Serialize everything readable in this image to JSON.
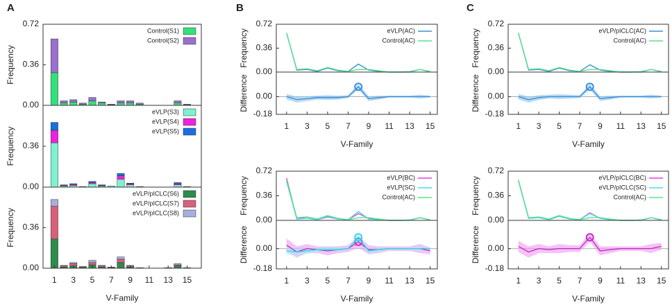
{
  "panel_labels": [
    "A",
    "B",
    "C"
  ],
  "chart_data": [
    {
      "type": "bar",
      "stacked": true,
      "ylabel": "Frequency",
      "x": [
        1,
        2,
        3,
        4,
        5,
        6,
        7,
        8,
        9,
        10,
        11,
        12,
        13,
        14,
        15
      ],
      "xlim": [
        -0.2,
        16.5
      ],
      "ylim": [
        0,
        0.72
      ],
      "yticks": [
        {
          "value": 0,
          "label": "0.00"
        },
        0.36,
        0.72
      ],
      "legend": "upper right",
      "series": [
        {
          "name": "Control(S1)",
          "color": "#33e07a",
          "values": [
            0.29,
            0.02,
            0.03,
            0.01,
            0.04,
            0.02,
            0.005,
            0.02,
            0.02,
            0.01,
            0,
            0,
            0,
            0.02,
            0.005
          ]
        },
        {
          "name": "Control(S2)",
          "color": "#9b6fd0",
          "values": [
            0.3,
            0.02,
            0.02,
            0.01,
            0.03,
            0.01,
            0.005,
            0.02,
            0.02,
            0.01,
            0,
            0,
            0,
            0.02,
            0.005
          ]
        }
      ]
    },
    {
      "type": "bar",
      "stacked": true,
      "ylabel": "Frequency",
      "x": [
        1,
        2,
        3,
        4,
        5,
        6,
        7,
        8,
        9,
        10,
        11,
        12,
        13,
        14,
        15
      ],
      "xlim": [
        -0.2,
        16.5
      ],
      "ylim": [
        0,
        0.72
      ],
      "yticks": [
        {
          "value": 0,
          "label": "0.00"
        },
        0.36
      ],
      "legend": "upper right",
      "series": [
        {
          "name": "eVLP(S3)",
          "color": "#7ff0d0",
          "values": [
            0.39,
            0.01,
            0.015,
            0.005,
            0.03,
            0.01,
            0.01,
            0.07,
            0.02,
            0.005,
            0,
            0,
            0,
            0.02,
            0.005
          ]
        },
        {
          "name": "eVLP(S4)",
          "color": "#ee22dd",
          "values": [
            0.11,
            0.005,
            0.01,
            0,
            0.01,
            0.005,
            0,
            0.03,
            0.01,
            0,
            0,
            0,
            0,
            0.01,
            0
          ]
        },
        {
          "name": "eVLP(S5)",
          "color": "#1a6fe0",
          "values": [
            0.07,
            0.005,
            0.005,
            0,
            0.01,
            0.005,
            0,
            0.02,
            0.005,
            0,
            0,
            0,
            0,
            0.01,
            0
          ]
        }
      ]
    },
    {
      "type": "bar",
      "stacked": true,
      "ylabel": "Frequency",
      "xlabel": "V-Family",
      "x": [
        1,
        2,
        3,
        4,
        5,
        6,
        7,
        8,
        9,
        10,
        11,
        12,
        13,
        14,
        15
      ],
      "xlim": [
        -0.2,
        16.5
      ],
      "xticks": [
        1,
        3,
        5,
        7,
        9,
        11,
        13,
        15
      ],
      "ylim": [
        0,
        0.72
      ],
      "yticks": [
        {
          "value": 0,
          "label": "0.00"
        },
        0.36
      ],
      "legend": "upper right",
      "series": [
        {
          "name": "eVLP/pICLC(S6)",
          "color": "#2e8b4a",
          "values": [
            0.26,
            0.01,
            0.02,
            0.01,
            0.03,
            0.01,
            0.005,
            0.05,
            0.01,
            0.005,
            0,
            0,
            0.005,
            0.02,
            0.005
          ]
        },
        {
          "name": "eVLP/pICLC(S7)",
          "color": "#d9607a",
          "values": [
            0.29,
            0.01,
            0.02,
            0.005,
            0.02,
            0.01,
            0.005,
            0.03,
            0.01,
            0,
            0,
            0,
            0,
            0.01,
            0
          ]
        },
        {
          "name": "eVLP/pICLC(S8)",
          "color": "#a7aee0",
          "values": [
            0.06,
            0.005,
            0.01,
            0,
            0.02,
            0.005,
            0,
            0.02,
            0.005,
            0,
            0,
            0,
            0,
            0.01,
            0
          ]
        }
      ]
    },
    {
      "type": "line",
      "ylabel": "Frequency",
      "x": [
        1,
        2,
        3,
        4,
        5,
        6,
        7,
        8,
        9,
        10,
        11,
        12,
        13,
        14,
        15
      ],
      "xlim": [
        0,
        15.7
      ],
      "ylim": [
        0,
        0.72
      ],
      "yticks": [
        {
          "value": 0,
          "label": "0.00"
        },
        0.36,
        0.72
      ],
      "legend": "upper right",
      "series": [
        {
          "name": "eVLP(AC)",
          "color": "#3a8fd8",
          "values": [
            0.59,
            0.03,
            0.04,
            0.01,
            0.06,
            0.02,
            0.01,
            0.12,
            0.03,
            0.01,
            0,
            0,
            0.005,
            0.04,
            0.005
          ]
        },
        {
          "name": "Control(AC)",
          "color": "#58e08a",
          "values": [
            0.59,
            0.04,
            0.05,
            0.02,
            0.07,
            0.03,
            0.01,
            0.04,
            0.04,
            0.02,
            0,
            0,
            0,
            0.04,
            0.01
          ]
        }
      ]
    },
    {
      "type": "band",
      "ylabel": "Difference",
      "xlabel": "V-Family",
      "x": [
        1,
        2,
        3,
        4,
        5,
        6,
        7,
        8,
        9,
        10,
        11,
        12,
        13,
        14,
        15
      ],
      "xlim": [
        0,
        15.7
      ],
      "xticks": [
        1,
        3,
        5,
        7,
        9,
        11,
        13,
        15
      ],
      "ylim": [
        -0.18,
        0.25
      ],
      "yticks": [
        -0.18,
        {
          "value": 0,
          "label": "0.00"
        }
      ],
      "zero_line": true,
      "highlight_x": 8,
      "series": [
        {
          "color": "#3a8fd8",
          "band_color": "#8ec4f0",
          "values": [
            0,
            -0.03,
            -0.02,
            -0.01,
            -0.01,
            -0.01,
            0,
            0.1,
            -0.02,
            -0.01,
            0,
            0,
            0,
            0,
            0
          ],
          "errors": [
            0.03,
            0.03,
            0.025,
            0.02,
            0.025,
            0.02,
            0.015,
            0.03,
            0.025,
            0.02,
            0.01,
            0.01,
            0.01,
            0.02,
            0.01
          ]
        }
      ]
    },
    {
      "type": "line",
      "ylabel": "Frequency",
      "x": [
        1,
        2,
        3,
        4,
        5,
        6,
        7,
        8,
        9,
        10,
        11,
        12,
        13,
        14,
        15
      ],
      "xlim": [
        0,
        15.7
      ],
      "ylim": [
        0,
        0.72
      ],
      "yticks": [
        {
          "value": 0,
          "label": "0.00"
        },
        0.36,
        0.72
      ],
      "legend": "upper right",
      "series": [
        {
          "name": "eVLP(BC)",
          "color": "#e040e0",
          "values": [
            0.62,
            0.02,
            0.05,
            0.01,
            0.05,
            0.02,
            0.01,
            0.1,
            0.03,
            0.01,
            0,
            0,
            0.005,
            0.04,
            0.005
          ]
        },
        {
          "name": "eVLP(SC)",
          "color": "#40e0e8",
          "values": [
            0.57,
            0.02,
            0.03,
            0.01,
            0.06,
            0.02,
            0.01,
            0.13,
            0.02,
            0.01,
            0,
            0,
            0.005,
            0.04,
            0.005
          ]
        },
        {
          "name": "Control(AC)",
          "color": "#58e08a",
          "values": [
            0.59,
            0.04,
            0.05,
            0.02,
            0.07,
            0.03,
            0.01,
            0.04,
            0.04,
            0.02,
            0,
            0,
            0,
            0.04,
            0.01
          ]
        }
      ]
    },
    {
      "type": "band",
      "ylabel": "Difference",
      "xlabel": "V-Family",
      "x": [
        1,
        2,
        3,
        4,
        5,
        6,
        7,
        8,
        9,
        10,
        11,
        12,
        13,
        14,
        15
      ],
      "xlim": [
        0,
        15.7
      ],
      "xticks": [
        1,
        3,
        5,
        7,
        9,
        11,
        13,
        15
      ],
      "ylim": [
        -0.18,
        0.25
      ],
      "yticks": [
        -0.18,
        {
          "value": 0,
          "label": "0.00"
        }
      ],
      "zero_line": true,
      "highlight_x": 8,
      "series": [
        {
          "color": "#c030c8",
          "band_color": "#f09af0",
          "values": [
            0.03,
            -0.03,
            0,
            -0.01,
            -0.02,
            -0.01,
            0,
            0.06,
            -0.01,
            -0.01,
            0,
            0,
            0,
            0,
            -0.02
          ],
          "errors": [
            0.06,
            0.05,
            0.04,
            0.03,
            0.04,
            0.03,
            0.03,
            0.05,
            0.04,
            0.03,
            0.02,
            0.02,
            0.02,
            0.04,
            0.03
          ]
        },
        {
          "color": "#30d8e8",
          "band_color": "#a0eef4",
          "values": [
            -0.02,
            -0.03,
            -0.02,
            -0.01,
            -0.01,
            -0.01,
            0,
            0.1,
            -0.02,
            -0.01,
            0,
            0,
            0,
            0,
            0
          ],
          "errors": [
            0.03,
            0.03,
            0.025,
            0.02,
            0.025,
            0.02,
            0.015,
            0.03,
            0.025,
            0.02,
            0.01,
            0.01,
            0.01,
            0.02,
            0.01
          ]
        }
      ]
    },
    {
      "type": "line",
      "ylabel": "Frequency",
      "x": [
        1,
        2,
        3,
        4,
        5,
        6,
        7,
        8,
        9,
        10,
        11,
        12,
        13,
        14,
        15
      ],
      "xlim": [
        0,
        15.7
      ],
      "ylim": [
        0,
        0.72
      ],
      "yticks": [
        {
          "value": 0,
          "label": "0.00"
        },
        0.36,
        0.72
      ],
      "legend": "upper right",
      "series": [
        {
          "name": "eVLP/pICLC(AC)",
          "color": "#3a8fd8",
          "values": [
            0.59,
            0.03,
            0.04,
            0.01,
            0.06,
            0.02,
            0.01,
            0.11,
            0.03,
            0.01,
            0,
            0,
            0.005,
            0.04,
            0.005
          ]
        },
        {
          "name": "Control(AC)",
          "color": "#58e08a",
          "values": [
            0.59,
            0.04,
            0.05,
            0.02,
            0.07,
            0.03,
            0.01,
            0.04,
            0.04,
            0.02,
            0,
            0,
            0,
            0.04,
            0.01
          ]
        }
      ]
    },
    {
      "type": "band",
      "ylabel": "Difference",
      "xlabel": "V-Family",
      "x": [
        1,
        2,
        3,
        4,
        5,
        6,
        7,
        8,
        9,
        10,
        11,
        12,
        13,
        14,
        15
      ],
      "xlim": [
        0,
        15.7
      ],
      "xticks": [
        1,
        3,
        5,
        7,
        9,
        11,
        13,
        15
      ],
      "ylim": [
        -0.18,
        0.25
      ],
      "yticks": [
        -0.18,
        {
          "value": 0,
          "label": "0.00"
        }
      ],
      "zero_line": true,
      "highlight_x": 8,
      "series": [
        {
          "color": "#3a8fd8",
          "band_color": "#8ec4f0",
          "values": [
            0,
            -0.03,
            -0.01,
            0,
            0,
            0,
            0,
            0.1,
            -0.02,
            -0.01,
            0,
            0,
            0,
            0,
            0
          ],
          "errors": [
            0.03,
            0.03,
            0.025,
            0.02,
            0.025,
            0.02,
            0.015,
            0.03,
            0.025,
            0.02,
            0.01,
            0.01,
            0.01,
            0.02,
            0.01
          ]
        }
      ]
    },
    {
      "type": "line",
      "ylabel": "Frequency",
      "x": [
        1,
        2,
        3,
        4,
        5,
        6,
        7,
        8,
        9,
        10,
        11,
        12,
        13,
        14,
        15
      ],
      "xlim": [
        0,
        15.7
      ],
      "ylim": [
        0,
        0.72
      ],
      "yticks": [
        {
          "value": 0,
          "label": "0.00"
        },
        0.36,
        0.72
      ],
      "legend": "upper right",
      "series": [
        {
          "name": "eVLP/pICLC(BC)",
          "color": "#e040e0",
          "values": [
            0.59,
            0.03,
            0.04,
            0.01,
            0.06,
            0.02,
            0.01,
            0.11,
            0.03,
            0.01,
            0,
            0,
            0.005,
            0.04,
            0.005
          ]
        },
        {
          "name": "eVLP/pICLC(SC)",
          "color": "#40e0e8",
          "values": [
            0.58,
            0.03,
            0.04,
            0.01,
            0.06,
            0.02,
            0.01,
            0.1,
            0.03,
            0.01,
            0,
            0,
            0.005,
            0.04,
            0.005
          ]
        },
        {
          "name": "Control(AC)",
          "color": "#58e08a",
          "values": [
            0.59,
            0.04,
            0.05,
            0.02,
            0.07,
            0.03,
            0.01,
            0.04,
            0.04,
            0.02,
            0,
            0,
            0,
            0.04,
            0.01
          ]
        }
      ]
    },
    {
      "type": "band",
      "ylabel": "Difference",
      "xlabel": "V-Family",
      "x": [
        1,
        2,
        3,
        4,
        5,
        6,
        7,
        8,
        9,
        10,
        11,
        12,
        13,
        14,
        15
      ],
      "xlim": [
        0,
        15.7
      ],
      "xticks": [
        1,
        3,
        5,
        7,
        9,
        11,
        13,
        15
      ],
      "ylim": [
        -0.18,
        0.25
      ],
      "yticks": [
        -0.18,
        {
          "value": 0,
          "label": "0.00"
        }
      ],
      "zero_line": true,
      "highlight_x": 8,
      "series": [
        {
          "color": "#c030c8",
          "band_color": "#f09af0",
          "values": [
            0.02,
            -0.03,
            0,
            -0.01,
            0,
            0,
            0,
            0.1,
            -0.02,
            -0.01,
            0,
            0,
            0,
            0,
            0.02
          ],
          "errors": [
            0.05,
            0.05,
            0.04,
            0.03,
            0.04,
            0.03,
            0.03,
            0.04,
            0.04,
            0.03,
            0.02,
            0.02,
            0.02,
            0.04,
            0.03
          ]
        }
      ]
    }
  ]
}
